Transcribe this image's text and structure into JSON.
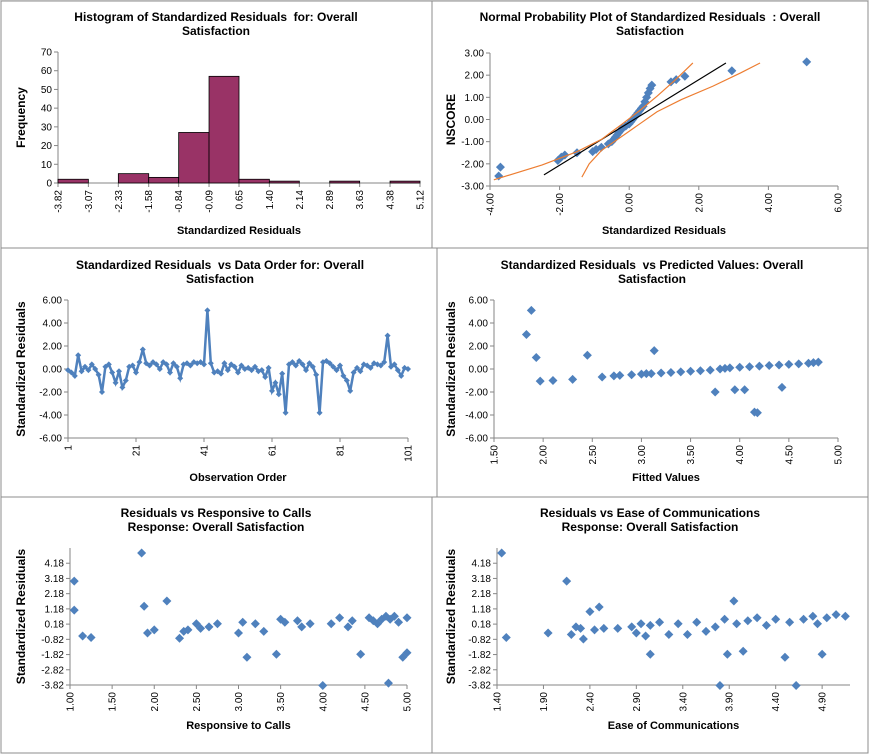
{
  "chart_data": [
    {
      "type": "histogram",
      "title": "Histogram of Standardized Residuals  for: Overall Satisfaction",
      "x_label": "Standardized Residuals",
      "y_label": "Frequency",
      "bins": [
        -3.82,
        -3.07,
        -2.33,
        -1.58,
        -0.84,
        -0.09,
        0.65,
        1.4,
        2.14,
        2.89,
        3.63,
        4.38,
        5.12
      ],
      "values": [
        2,
        0,
        5,
        3,
        27,
        57,
        2,
        1,
        0,
        1,
        0,
        1
      ],
      "color": "#993366",
      "xlim": [
        -3.82,
        5.12
      ],
      "xticks": [
        -3.82,
        -3.07,
        -2.33,
        -1.58,
        -0.84,
        -0.09,
        0.65,
        {
          "value": 1.4,
          "label": "1.40"
        },
        2.14,
        2.89,
        3.63,
        4.38,
        5.12
      ],
      "ylim": [
        0,
        70
      ],
      "yticks": [
        0,
        10,
        20,
        30,
        40,
        50,
        60,
        70
      ]
    },
    {
      "type": "scatter",
      "title": "Normal Probability Plot of Standardized Residuals  : Overall Satisfaction",
      "x_label": "Standardized Residuals",
      "y_label": "NSCORE",
      "xlim": [
        -4,
        6
      ],
      "xticks": [
        {
          "value": -4,
          "label": "-4.00"
        },
        {
          "value": -2,
          "label": "-2.00"
        },
        {
          "value": 0,
          "label": "0.00"
        },
        {
          "value": 2,
          "label": "2.00"
        },
        {
          "value": 4,
          "label": "4.00"
        },
        {
          "value": 6,
          "label": "6.00"
        }
      ],
      "ylim": [
        -3,
        3
      ],
      "yticks": [
        {
          "value": -3,
          "label": "-3.00"
        },
        {
          "value": -2,
          "label": "-2.00"
        },
        {
          "value": -1,
          "label": "-1.00"
        },
        {
          "value": 0,
          "label": "0.00"
        },
        {
          "value": 1,
          "label": "1.00"
        },
        {
          "value": 2,
          "label": "2.00"
        },
        {
          "value": 3,
          "label": "3.00"
        }
      ],
      "series": [
        {
          "style": "markers",
          "color": "#4f81bd",
          "x": [
            -3.75,
            -3.7,
            -2.05,
            -1.95,
            -1.85,
            -1.5,
            -1.05,
            -0.95,
            -0.8,
            -0.6,
            -0.5,
            -0.45,
            -0.4,
            -0.35,
            -0.3,
            -0.25,
            -0.2,
            -0.1,
            0,
            0.05,
            0.1,
            0.15,
            0.2,
            0.25,
            0.3,
            0.35,
            0.4,
            0.45,
            0.5,
            0.55,
            0.6,
            0.65,
            1.2,
            1.35,
            1.6,
            2.95,
            5.1
          ],
          "values": [
            -2.55,
            -2.15,
            -1.85,
            -1.7,
            -1.6,
            -1.5,
            -1.45,
            -1.35,
            -1.25,
            -1.1,
            -1.0,
            -0.9,
            -0.8,
            -0.7,
            -0.6,
            -0.5,
            -0.4,
            -0.3,
            -0.2,
            -0.1,
            0,
            0.1,
            0.2,
            0.3,
            0.4,
            0.5,
            0.6,
            0.8,
            1.0,
            1.2,
            1.4,
            1.55,
            1.7,
            1.8,
            1.95,
            2.2,
            2.6
          ]
        },
        {
          "style": "line",
          "color": "#000000",
          "x": [
            -2.45,
            2.78
          ],
          "values": [
            -2.5,
            2.55
          ]
        },
        {
          "style": "line",
          "color": "#ed7d31",
          "x": [
            -3.89,
            -2.5,
            -1.5,
            -0.8,
            -0.2,
            0.3,
            0.8,
            1.3,
            1.6,
            1.83
          ],
          "values": [
            -2.72,
            -2.05,
            -1.45,
            -0.9,
            -0.2,
            0.4,
            1.05,
            1.75,
            2.2,
            2.55
          ]
        },
        {
          "style": "line",
          "color": "#ed7d31",
          "x": [
            -1.36,
            -1.15,
            -0.8,
            -0.2,
            0.3,
            0.8,
            1.5,
            2.4,
            3.2,
            3.76
          ],
          "values": [
            -2.6,
            -2.0,
            -1.4,
            -0.75,
            -0.2,
            0.35,
            0.9,
            1.5,
            2.1,
            2.55
          ]
        }
      ]
    },
    {
      "type": "line",
      "title": "Standardized Residuals  vs Data Order for: Overall Satisfaction",
      "x_label": "Observation Order",
      "y_label": "Standardized Residuals",
      "xlim": [
        1,
        101
      ],
      "xticks": [
        1,
        21,
        41,
        61,
        81,
        101
      ],
      "ylim": [
        -6,
        6
      ],
      "yticks": [
        {
          "value": -6,
          "label": "-6.00"
        },
        {
          "value": -4,
          "label": "-4.00"
        },
        {
          "value": -2,
          "label": "-2.00"
        },
        {
          "value": 0,
          "label": "0.00"
        },
        {
          "value": 2,
          "label": "2.00"
        },
        {
          "value": 4,
          "label": "4.00"
        },
        {
          "value": 6,
          "label": "6.00"
        }
      ],
      "series": [
        {
          "style": "line-markers",
          "color": "#4f81bd",
          "x": [
            1,
            2,
            3,
            4,
            5,
            6,
            7,
            8,
            9,
            10,
            11,
            12,
            13,
            14,
            15,
            16,
            17,
            18,
            19,
            20,
            21,
            22,
            23,
            24,
            25,
            26,
            27,
            28,
            29,
            30,
            31,
            32,
            33,
            34,
            35,
            36,
            37,
            38,
            39,
            40,
            41,
            42,
            43,
            44,
            45,
            46,
            47,
            48,
            49,
            50,
            51,
            52,
            53,
            54,
            55,
            56,
            57,
            58,
            59,
            60,
            61,
            62,
            63,
            64,
            65,
            66,
            67,
            68,
            69,
            70,
            71,
            72,
            73,
            74,
            75,
            76,
            77,
            78,
            79,
            80,
            81,
            82,
            83,
            84,
            85,
            86,
            87,
            88,
            89,
            90,
            91,
            92,
            93,
            94,
            95,
            96,
            97,
            98,
            99,
            100,
            101
          ],
          "values": [
            -0.1,
            -0.3,
            -0.6,
            1.2,
            -0.2,
            0.2,
            -0.1,
            0.4,
            0.0,
            -0.5,
            -2.0,
            0.2,
            0.4,
            -0.3,
            -1.2,
            -0.2,
            -1.6,
            -1.0,
            0.2,
            0.3,
            -0.3,
            0.6,
            1.7,
            0.5,
            0.3,
            0.6,
            0.4,
            0.0,
            0.6,
            0.4,
            -0.3,
            0.5,
            0.2,
            -0.8,
            0.4,
            0.5,
            0.3,
            0.6,
            0.5,
            0.6,
            0.4,
            5.1,
            0.5,
            -0.3,
            -0.2,
            -0.4,
            0.5,
            -0.1,
            0.4,
            0.2,
            -0.3,
            0.3,
            0.0,
            0.1,
            -0.1,
            0.2,
            -0.2,
            -0.1,
            -0.7,
            0.1,
            -1.9,
            -1.2,
            -2.2,
            -0.4,
            -3.8,
            0.4,
            0.6,
            0.3,
            0.7,
            0.4,
            -0.1,
            0.5,
            0.2,
            -0.5,
            -3.8,
            0.6,
            0.7,
            0.5,
            0.2,
            -0.1,
            0.3,
            -0.6,
            -1.0,
            -1.9,
            -0.3,
            0.1,
            -0.2,
            0.4,
            0.3,
            0.1,
            0.5,
            0.4,
            0.3,
            0.6,
            2.9,
            0.2,
            0.4,
            -0.1,
            -0.6,
            0.1,
            0.0
          ]
        }
      ]
    },
    {
      "type": "scatter",
      "title": "Standardized Residuals  vs Predicted Values: Overall Satisfaction",
      "x_label": "Fitted Values",
      "y_label": "Standardized Residuals",
      "xlim": [
        1.5,
        5
      ],
      "xticks": [
        {
          "value": 1.5,
          "label": "1.50"
        },
        {
          "value": 2,
          "label": "2.00"
        },
        {
          "value": 2.5,
          "label": "2.50"
        },
        {
          "value": 3,
          "label": "3.00"
        },
        {
          "value": 3.5,
          "label": "3.50"
        },
        {
          "value": 4,
          "label": "4.00"
        },
        {
          "value": 4.5,
          "label": "4.50"
        },
        {
          "value": 5,
          "label": "5.00"
        }
      ],
      "ylim": [
        -6,
        6
      ],
      "yticks": [
        {
          "value": -6,
          "label": "-6.00"
        },
        {
          "value": -4,
          "label": "-4.00"
        },
        {
          "value": -2,
          "label": "-2.00"
        },
        {
          "value": 0,
          "label": "0.00"
        },
        {
          "value": 2,
          "label": "2.00"
        },
        {
          "value": 4,
          "label": "4.00"
        },
        {
          "value": 6,
          "label": "6.00"
        }
      ],
      "series": [
        {
          "style": "markers",
          "color": "#4f81bd",
          "x": [
            1.83,
            1.88,
            1.93,
            1.97,
            2.1,
            2.3,
            2.45,
            2.6,
            2.72,
            2.78,
            2.9,
            3.0,
            3.05,
            3.1,
            3.13,
            3.2,
            3.3,
            3.4,
            3.5,
            3.6,
            3.7,
            3.75,
            3.8,
            3.85,
            3.9,
            3.95,
            4.0,
            4.05,
            4.1,
            4.15,
            4.18,
            4.2,
            4.3,
            4.4,
            4.43,
            4.5,
            4.6,
            4.7,
            4.75,
            4.8
          ],
          "values": [
            3.0,
            5.1,
            1.0,
            -1.05,
            -1.0,
            -0.9,
            1.2,
            -0.7,
            -0.6,
            -0.55,
            -0.5,
            -0.45,
            -0.4,
            -0.4,
            1.6,
            -0.35,
            -0.3,
            -0.25,
            -0.2,
            -0.15,
            -0.1,
            -2.0,
            0.0,
            0.05,
            0.1,
            -1.8,
            0.15,
            -1.8,
            0.2,
            -3.75,
            -3.8,
            0.25,
            0.3,
            0.35,
            -1.6,
            0.4,
            0.45,
            0.5,
            0.55,
            0.6
          ]
        }
      ]
    },
    {
      "type": "scatter",
      "title": "Residuals vs Responsive to Calls",
      "subtitle": "Response: Overall Satisfaction",
      "x_label": "Responsive to Calls",
      "y_label": "Standardized Residuals",
      "xlim": [
        1,
        5
      ],
      "xticks": [
        {
          "value": 1,
          "label": "1.00"
        },
        {
          "value": 1.5,
          "label": "1.50"
        },
        {
          "value": 2,
          "label": "2.00"
        },
        {
          "value": 2.5,
          "label": "2.50"
        },
        {
          "value": 3,
          "label": "3.00"
        },
        {
          "value": 3.5,
          "label": "3.50"
        },
        {
          "value": 4,
          "label": "4.00"
        },
        {
          "value": 4.5,
          "label": "4.50"
        },
        {
          "value": 5,
          "label": "5.00"
        }
      ],
      "ylim": [
        -3.82,
        5.18
      ],
      "yticks": [
        -3.82,
        -2.82,
        -1.82,
        -0.82,
        0.18,
        1.18,
        2.18,
        3.18,
        4.18
      ],
      "series": [
        {
          "style": "markers",
          "color": "#4f81bd",
          "x": [
            1.05,
            1.05,
            1.15,
            1.25,
            1.85,
            1.88,
            1.92,
            2.0,
            2.15,
            2.3,
            2.35,
            2.4,
            2.5,
            2.55,
            2.65,
            2.75,
            3.0,
            3.05,
            3.1,
            3.2,
            3.3,
            3.45,
            3.5,
            3.55,
            3.7,
            3.75,
            3.85,
            4.0,
            4.1,
            4.2,
            4.3,
            4.35,
            4.45,
            4.55,
            4.6,
            4.65,
            4.7,
            4.75,
            4.78,
            4.8,
            4.85,
            4.9,
            4.95,
            5.0,
            5.0
          ],
          "values": [
            3.0,
            1.1,
            -0.6,
            -0.7,
            4.85,
            1.35,
            -0.4,
            -0.2,
            1.7,
            -0.75,
            -0.3,
            -0.2,
            0.2,
            -0.1,
            0.0,
            0.2,
            -0.4,
            0.3,
            -2.0,
            0.2,
            -0.3,
            -1.8,
            0.5,
            0.3,
            0.4,
            0.0,
            0.2,
            -3.85,
            0.2,
            0.6,
            0.0,
            0.4,
            -1.8,
            0.6,
            0.4,
            0.2,
            0.5,
            0.7,
            -3.7,
            0.5,
            0.7,
            0.3,
            -2.0,
            -1.7,
            0.6
          ]
        }
      ]
    },
    {
      "type": "scatter",
      "title": "Residuals vs Ease of Communications",
      "subtitle": "Response: Overall Satisfaction",
      "x_label": "Ease of Communications",
      "y_label": "Standardized Residuals",
      "xlim": [
        1.4,
        5.2
      ],
      "xticks": [
        {
          "value": 1.4,
          "label": "1.40"
        },
        {
          "value": 1.9,
          "label": "1.90"
        },
        {
          "value": 2.4,
          "label": "2.40"
        },
        {
          "value": 2.9,
          "label": "2.90"
        },
        {
          "value": 3.4,
          "label": "3.40"
        },
        {
          "value": 3.9,
          "label": "3.90"
        },
        {
          "value": 4.4,
          "label": "4.40"
        },
        {
          "value": 4.9,
          "label": "4.90"
        }
      ],
      "ylim": [
        -3.82,
        5.18
      ],
      "yticks": [
        -3.82,
        -2.82,
        -1.82,
        -0.82,
        0.18,
        1.18,
        2.18,
        3.18,
        4.18
      ],
      "series": [
        {
          "style": "markers",
          "color": "#4f81bd",
          "x": [
            1.45,
            1.5,
            1.95,
            2.15,
            2.2,
            2.25,
            2.3,
            2.33,
            2.4,
            2.5,
            2.45,
            2.55,
            2.7,
            2.85,
            2.9,
            2.95,
            3.0,
            3.05,
            3.05,
            3.15,
            3.25,
            3.35,
            3.45,
            3.55,
            3.65,
            3.75,
            3.8,
            3.85,
            3.88,
            3.95,
            3.98,
            4.05,
            4.1,
            4.2,
            4.3,
            4.4,
            4.5,
            4.55,
            4.62,
            4.7,
            4.8,
            4.85,
            4.9,
            4.95,
            5.05,
            5.15
          ],
          "values": [
            4.85,
            -0.7,
            -0.4,
            3.0,
            -0.5,
            0.0,
            -0.1,
            -0.8,
            1.0,
            1.3,
            -0.2,
            -0.1,
            -0.1,
            0.0,
            -0.4,
            0.2,
            -0.6,
            0.1,
            -1.8,
            0.3,
            -0.5,
            0.2,
            -0.5,
            0.3,
            -0.3,
            0.0,
            -3.85,
            0.5,
            -1.8,
            1.7,
            0.2,
            -1.6,
            0.4,
            0.6,
            0.1,
            0.5,
            -2.0,
            0.3,
            -3.85,
            0.5,
            0.7,
            0.2,
            -1.8,
            0.6,
            0.8,
            0.7
          ]
        }
      ]
    }
  ]
}
